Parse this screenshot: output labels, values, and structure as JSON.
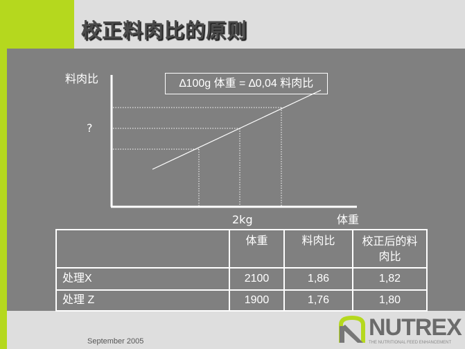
{
  "title": "校正料肉比的原则",
  "chart": {
    "y_label": "料肉比",
    "x_label": "体重",
    "x_marker": "2kg",
    "y_marker": "?",
    "formula": "∆100g 体重 = ∆0,04 料肉比"
  },
  "table": {
    "headers": [
      "",
      "体重",
      "料肉比",
      "校正后的料肉比"
    ],
    "rows": [
      [
        "处理X",
        "2100",
        "1,86",
        "1,82"
      ],
      [
        "处理 Z",
        "1900",
        "1,76",
        "1,80"
      ]
    ]
  },
  "footer": {
    "date": "September 2005"
  },
  "logo": {
    "text": "NUTREX",
    "tagline": "THE NUTRITIONAL FEED ENHANCEMENT",
    "accent": "#b5d81e"
  },
  "colors": {
    "accent": "#b5d81e",
    "panel": "#808080",
    "background": "#dedede"
  }
}
